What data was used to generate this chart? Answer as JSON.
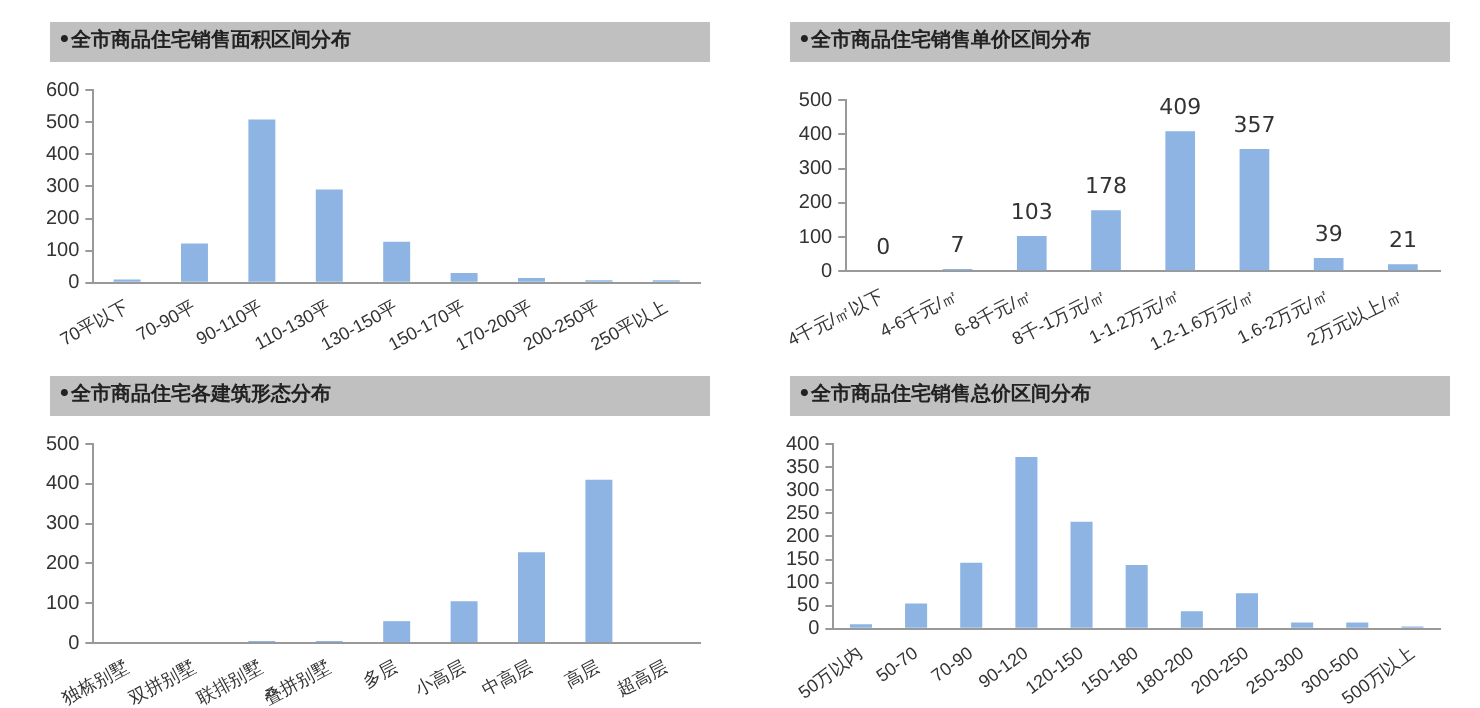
{
  "chart_data": [
    {
      "type": "bar",
      "title": "•全市商品住宅销售面积区间分布",
      "categories": [
        "70平以下",
        "70-90平",
        "90-110平",
        "110-130平",
        "130-150平",
        "150-170平",
        "170-200平",
        "200-250平",
        "250平以上"
      ],
      "values": [
        10,
        122,
        508,
        290,
        128,
        30,
        15,
        8,
        8
      ],
      "color": "#8db4e2",
      "ylim": [
        0,
        600
      ],
      "yticks": [
        0,
        100,
        200,
        300,
        400,
        500,
        600
      ],
      "grid": false,
      "legend": false
    },
    {
      "type": "bar",
      "title": "•全市商品住宅销售单价区间分布",
      "categories": [
        "4千元/㎡以下",
        "4-6千元/㎡",
        "6-8千元/㎡",
        "8千-1万元/㎡",
        "1-1.2万元/㎡",
        "1.2-1.6万元/㎡",
        "1.6-2万元/㎡",
        "2万元以上/㎡"
      ],
      "values": [
        0,
        7,
        103,
        178,
        409,
        357,
        39,
        21
      ],
      "color": "#8db4e2",
      "ylim": [
        0,
        500
      ],
      "yticks": [
        0,
        100,
        200,
        300,
        400,
        500
      ],
      "grid": false,
      "legend": false,
      "data_labels": true
    },
    {
      "type": "bar",
      "title": "•全市商品住宅各建筑形态分布",
      "categories": [
        "独栋别墅",
        "双拼别墅",
        "联排别墅",
        "叠拼别墅",
        "多层",
        "小高层",
        "中高层",
        "高层",
        "超高层"
      ],
      "values": [
        0,
        0,
        5,
        5,
        55,
        105,
        228,
        410,
        0
      ],
      "color": "#8db4e2",
      "ylim": [
        0,
        500
      ],
      "yticks": [
        0,
        100,
        200,
        300,
        400,
        500
      ],
      "grid": false,
      "legend": false
    },
    {
      "type": "bar",
      "title": "•全市商品住宅销售总价区间分布",
      "categories": [
        "50万以内",
        "50-70",
        "70-90",
        "90-120",
        "120-150",
        "150-180",
        "180-200",
        "200-250",
        "250-300",
        "300-500",
        "500万以上"
      ],
      "values": [
        10,
        55,
        143,
        372,
        232,
        138,
        38,
        77,
        14,
        14,
        5
      ],
      "color": "#8db4e2",
      "ylim": [
        0,
        400
      ],
      "yticks": [
        0,
        50,
        100,
        150,
        200,
        250,
        300,
        350,
        400
      ],
      "grid": false,
      "legend": false
    }
  ]
}
